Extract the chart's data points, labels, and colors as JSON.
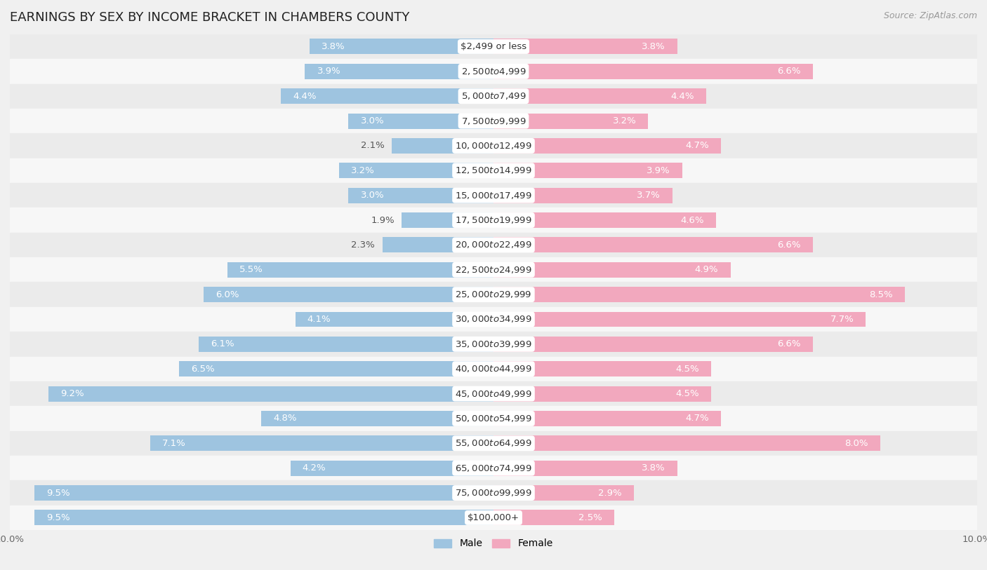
{
  "title": "EARNINGS BY SEX BY INCOME BRACKET IN CHAMBERS COUNTY",
  "source": "Source: ZipAtlas.com",
  "categories": [
    "$2,499 or less",
    "$2,500 to $4,999",
    "$5,000 to $7,499",
    "$7,500 to $9,999",
    "$10,000 to $12,499",
    "$12,500 to $14,999",
    "$15,000 to $17,499",
    "$17,500 to $19,999",
    "$20,000 to $22,499",
    "$22,500 to $24,999",
    "$25,000 to $29,999",
    "$30,000 to $34,999",
    "$35,000 to $39,999",
    "$40,000 to $44,999",
    "$45,000 to $49,999",
    "$50,000 to $54,999",
    "$55,000 to $64,999",
    "$65,000 to $74,999",
    "$75,000 to $99,999",
    "$100,000+"
  ],
  "male_values": [
    3.8,
    3.9,
    4.4,
    3.0,
    2.1,
    3.2,
    3.0,
    1.9,
    2.3,
    5.5,
    6.0,
    4.1,
    6.1,
    6.5,
    9.2,
    4.8,
    7.1,
    4.2,
    9.5,
    9.5
  ],
  "female_values": [
    3.8,
    6.6,
    4.4,
    3.2,
    4.7,
    3.9,
    3.7,
    4.6,
    6.6,
    4.9,
    8.5,
    7.7,
    6.6,
    4.5,
    4.5,
    4.7,
    8.0,
    3.8,
    2.9,
    2.5
  ],
  "male_color": "#9ec4e0",
  "female_color": "#f2a8be",
  "background_row_odd": "#ebebeb",
  "background_row_even": "#f7f7f7",
  "xlim": 10.0,
  "bar_height": 0.62,
  "title_fontsize": 13,
  "label_fontsize": 9.5,
  "cat_fontsize": 9.5,
  "tick_fontsize": 9.5,
  "source_fontsize": 9,
  "inside_threshold_male": 2.5,
  "inside_threshold_female": 2.5
}
